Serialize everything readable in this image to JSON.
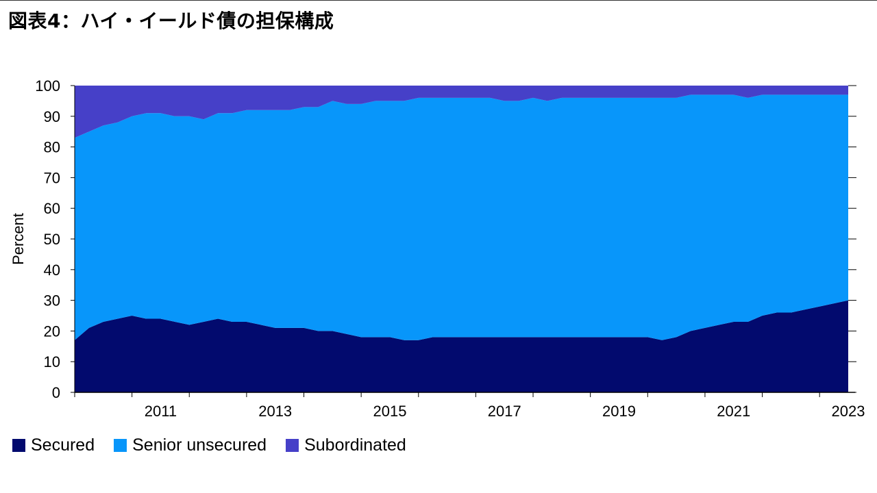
{
  "title": "図表4：ハイ・イールド債の担保構成",
  "chart_data": {
    "type": "area",
    "stacked": true,
    "title": "図表4：ハイ・イールド債の担保構成",
    "ylabel": "Percent",
    "xlabel": "",
    "ylim": [
      0,
      100
    ],
    "yticks": [
      0,
      10,
      20,
      30,
      40,
      50,
      60,
      70,
      80,
      90,
      100
    ],
    "xlim": [
      2010.0,
      2023.5
    ],
    "xticks": [
      2011,
      2013,
      2015,
      2017,
      2019,
      2021,
      2023
    ],
    "xtick_labels": [
      "2011",
      "2013",
      "2015",
      "2017",
      "2019",
      "2021",
      "2023"
    ],
    "x": [
      2010.0,
      2010.25,
      2010.5,
      2010.75,
      2011.0,
      2011.25,
      2011.5,
      2011.75,
      2012.0,
      2012.25,
      2012.5,
      2012.75,
      2013.0,
      2013.25,
      2013.5,
      2013.75,
      2014.0,
      2014.25,
      2014.5,
      2014.75,
      2015.0,
      2015.25,
      2015.5,
      2015.75,
      2016.0,
      2016.25,
      2016.5,
      2016.75,
      2017.0,
      2017.25,
      2017.5,
      2017.75,
      2018.0,
      2018.25,
      2018.5,
      2018.75,
      2019.0,
      2019.25,
      2019.5,
      2019.75,
      2020.0,
      2020.25,
      2020.5,
      2020.75,
      2021.0,
      2021.25,
      2021.5,
      2021.75,
      2022.0,
      2022.25,
      2022.5,
      2022.75,
      2023.0,
      2023.25,
      2023.5
    ],
    "series": [
      {
        "name": "Secured",
        "color": "#020a6e",
        "values": [
          17,
          21,
          23,
          24,
          25,
          24,
          24,
          23,
          22,
          23,
          24,
          23,
          23,
          22,
          21,
          21,
          21,
          20,
          20,
          19,
          18,
          18,
          18,
          17,
          17,
          18,
          18,
          18,
          18,
          18,
          18,
          18,
          18,
          18,
          18,
          18,
          18,
          18,
          18,
          18,
          18,
          17,
          18,
          20,
          21,
          22,
          23,
          23,
          25,
          26,
          26,
          27,
          28,
          29,
          30
        ]
      },
      {
        "name": "Senior unsecured",
        "color": "#0896fa",
        "values": [
          66,
          64,
          64,
          64,
          65,
          67,
          67,
          67,
          68,
          66,
          67,
          68,
          69,
          70,
          71,
          71,
          72,
          73,
          75,
          75,
          76,
          77,
          77,
          78,
          79,
          78,
          78,
          78,
          78,
          78,
          77,
          77,
          78,
          77,
          78,
          78,
          78,
          78,
          78,
          78,
          78,
          79,
          78,
          77,
          76,
          75,
          74,
          73,
          72,
          71,
          71,
          70,
          69,
          68,
          67
        ]
      },
      {
        "name": "Subordinated",
        "color": "#4640c8",
        "values": [
          17,
          15,
          13,
          12,
          10,
          9,
          9,
          10,
          10,
          11,
          9,
          9,
          8,
          8,
          8,
          8,
          7,
          7,
          5,
          6,
          6,
          5,
          5,
          5,
          4,
          4,
          4,
          4,
          4,
          4,
          5,
          5,
          4,
          5,
          4,
          4,
          4,
          4,
          4,
          4,
          4,
          4,
          4,
          3,
          3,
          3,
          3,
          4,
          3,
          3,
          3,
          3,
          3,
          3,
          3
        ]
      }
    ],
    "legend_position": "bottom-left",
    "grid": false
  }
}
